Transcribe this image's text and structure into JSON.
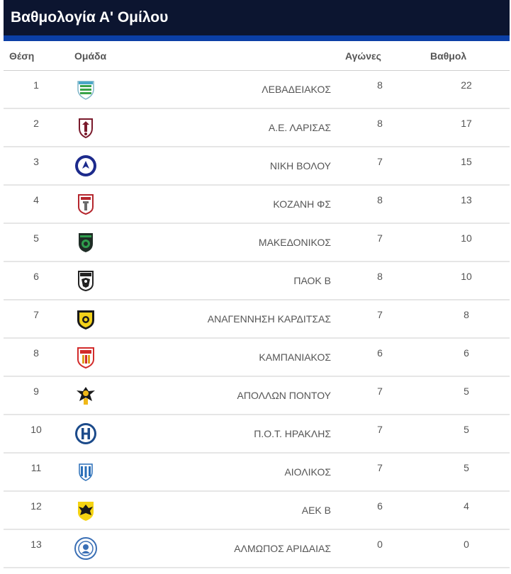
{
  "title": "Βαθμολογία Α' Ομίλου",
  "colors": {
    "title_bg": "#0c1530",
    "accent": "#0b3fa6"
  },
  "columns": {
    "position": "Θέση",
    "team": "Ομάδα",
    "games": "Αγώνες",
    "points": "Βαθμολ"
  },
  "rows": [
    {
      "position": "1",
      "team": "ΛΕΒΑΔΕΙΑΚΟΣ",
      "games": "8",
      "points": "22",
      "logo": "levadeiakos-crest-icon"
    },
    {
      "position": "2",
      "team": "Α.Ε. ΛΑΡΙΣΑΣ",
      "games": "8",
      "points": "17",
      "logo": "ae-larisas-crest-icon"
    },
    {
      "position": "3",
      "team": "ΝΙΚΗ ΒΟΛΟΥ",
      "games": "7",
      "points": "15",
      "logo": "niki-volou-crest-icon"
    },
    {
      "position": "4",
      "team": "ΚΟΖΑΝΗ ΦΣ",
      "games": "8",
      "points": "13",
      "logo": "kozani-crest-icon"
    },
    {
      "position": "5",
      "team": "ΜΑΚΕΔΟΝΙΚΟΣ",
      "games": "7",
      "points": "10",
      "logo": "makedonikos-crest-icon"
    },
    {
      "position": "6",
      "team": "ΠΑΟΚ Β",
      "games": "8",
      "points": "10",
      "logo": "paok-crest-icon"
    },
    {
      "position": "7",
      "team": "ΑΝΑΓΕΝΝΗΣΗ ΚΑΡΔΙΤΣΑΣ",
      "games": "7",
      "points": "8",
      "logo": "anagennisi-crest-icon"
    },
    {
      "position": "8",
      "team": "ΚΑΜΠΑΝΙΑΚΟΣ",
      "games": "6",
      "points": "6",
      "logo": "kampaniakos-crest-icon"
    },
    {
      "position": "9",
      "team": "ΑΠΟΛΛΩΝ ΠΟΝΤΟΥ",
      "games": "7",
      "points": "5",
      "logo": "apollon-pontou-crest-icon"
    },
    {
      "position": "10",
      "team": "Π.Ο.Τ. ΗΡΑΚΛΗΣ",
      "games": "7",
      "points": "5",
      "logo": "iraklis-crest-icon"
    },
    {
      "position": "11",
      "team": "ΑΙΟΛΙΚΟΣ",
      "games": "7",
      "points": "5",
      "logo": "aiolikos-crest-icon"
    },
    {
      "position": "12",
      "team": "ΑΕΚ Β",
      "games": "6",
      "points": "4",
      "logo": "aek-crest-icon"
    },
    {
      "position": "13",
      "team": "ΑΛΜΩΠΟΣ ΑΡΙΔΑΙΑΣ",
      "games": "0",
      "points": "0",
      "logo": "almopos-crest-icon"
    }
  ]
}
